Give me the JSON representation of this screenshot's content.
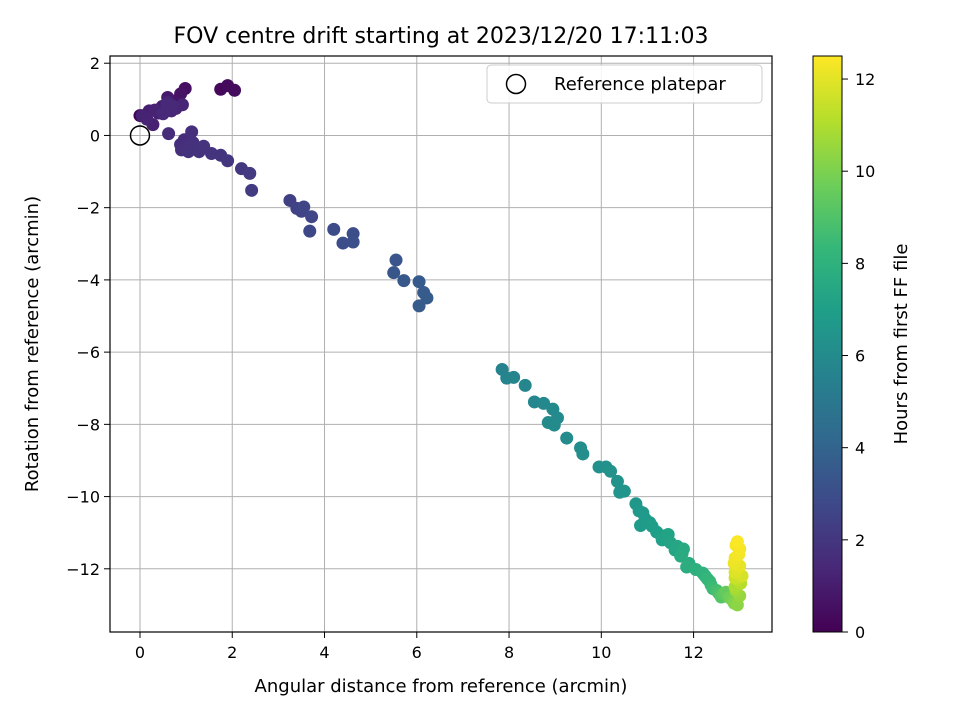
{
  "chart_data": {
    "type": "scatter",
    "title": "FOV centre drift starting at 2023/12/20 17:11:03",
    "xlabel": "Angular distance from reference (arcmin)",
    "ylabel": "Rotation from reference (arcmin)",
    "xlim": [
      -0.65,
      13.7
    ],
    "ylim": [
      -13.75,
      2.2
    ],
    "x_ticks": [
      0,
      2,
      4,
      6,
      8,
      10,
      12
    ],
    "y_ticks": [
      2,
      0,
      -2,
      -4,
      -6,
      -8,
      -10,
      -12
    ],
    "grid": true,
    "legend": {
      "placement": "top-right",
      "entries": [
        "Reference platepar"
      ]
    },
    "reference_point": {
      "x": 0,
      "y": 0
    },
    "colorbar": {
      "label": "Hours from first FF file",
      "min": 0,
      "max": 12.5,
      "ticks": [
        0,
        2,
        4,
        6,
        8,
        10,
        12
      ],
      "colormap": "viridis"
    },
    "series": [
      {
        "x": [
          0.0,
          1.75,
          1.9,
          2.05,
          0.98,
          0.88,
          0.72,
          0.55,
          0.6,
          0.4,
          0.48,
          0.2,
          0.28,
          0.05,
          0.15,
          0.32,
          0.6,
          0.92,
          0.78,
          0.68,
          0.62,
          0.58,
          0.7,
          0.5,
          0.62,
          0.88,
          0.96,
          1.0,
          1.02,
          1.12,
          0.9,
          1.15,
          1.2,
          1.05,
          1.28,
          1.38,
          1.55,
          1.75,
          1.9,
          2.2,
          2.38,
          2.42,
          3.25,
          3.4,
          3.5,
          3.55,
          3.72,
          3.68,
          4.2,
          4.4,
          4.62,
          4.62,
          5.55,
          5.5,
          5.72,
          6.05,
          6.15,
          6.22,
          6.05,
          7.85,
          7.95,
          8.1,
          8.35,
          8.55,
          8.75,
          8.95,
          9.05,
          8.85,
          8.98,
          9.25,
          9.55,
          9.6,
          9.95,
          10.1,
          10.2,
          10.35,
          10.5,
          10.4,
          10.75,
          10.82,
          10.9,
          10.95,
          10.85,
          11.05,
          11.1,
          11.2,
          11.3,
          11.32,
          11.45,
          11.5,
          11.6,
          11.65,
          11.75,
          11.78,
          11.72,
          11.9,
          11.85,
          12.05,
          12.2,
          12.25,
          12.3,
          12.35,
          12.38,
          12.42,
          12.5,
          12.55,
          12.6,
          12.65,
          12.7,
          12.78,
          12.85,
          12.88,
          12.95,
          13.0,
          12.92,
          12.9,
          13.02,
          12.95,
          12.9,
          13.05,
          12.9,
          12.95,
          13.0,
          12.88,
          12.9,
          12.98,
          13.0,
          12.92,
          12.95
        ],
        "y": [
          0.55,
          1.28,
          1.38,
          1.25,
          1.3,
          1.15,
          0.95,
          0.72,
          1.05,
          0.62,
          0.8,
          0.68,
          0.3,
          0.55,
          0.45,
          0.7,
          0.92,
          0.85,
          0.75,
          0.68,
          0.75,
          0.85,
          0.82,
          0.6,
          0.05,
          -0.25,
          -0.12,
          -0.38,
          -0.3,
          0.1,
          -0.4,
          -0.2,
          -0.35,
          -0.45,
          -0.45,
          -0.3,
          -0.5,
          -0.55,
          -0.7,
          -0.92,
          -1.05,
          -1.52,
          -1.8,
          -2.02,
          -2.1,
          -1.98,
          -2.25,
          -2.65,
          -2.6,
          -2.98,
          -2.72,
          -2.95,
          -3.45,
          -3.8,
          -4.02,
          -4.05,
          -4.35,
          -4.5,
          -4.72,
          -6.48,
          -6.72,
          -6.7,
          -6.92,
          -7.38,
          -7.42,
          -7.58,
          -7.82,
          -7.95,
          -8.02,
          -8.38,
          -8.65,
          -8.82,
          -9.18,
          -9.18,
          -9.3,
          -9.58,
          -9.85,
          -9.88,
          -10.2,
          -10.4,
          -10.45,
          -10.62,
          -10.8,
          -10.72,
          -10.82,
          -10.98,
          -11.08,
          -11.2,
          -11.05,
          -11.28,
          -11.48,
          -11.38,
          -11.58,
          -11.45,
          -11.65,
          -11.85,
          -11.95,
          -12.02,
          -12.12,
          -12.2,
          -12.28,
          -12.35,
          -12.45,
          -12.55,
          -12.6,
          -12.68,
          -12.78,
          -12.7,
          -12.65,
          -12.8,
          -12.88,
          -12.95,
          -13.0,
          -12.75,
          -12.6,
          -12.5,
          -12.4,
          -12.3,
          -12.25,
          -12.2,
          -12.1,
          -12.0,
          -11.92,
          -11.85,
          -11.7,
          -11.6,
          -11.45,
          -11.35,
          -11.25
        ],
        "hours": [
          0.15,
          0.25,
          0.32,
          0.4,
          0.55,
          0.65,
          0.72,
          0.8,
          0.85,
          0.95,
          1.0,
          1.05,
          1.1,
          1.15,
          1.2,
          1.22,
          1.25,
          1.3,
          1.32,
          1.35,
          1.38,
          1.4,
          1.42,
          1.45,
          1.55,
          1.6,
          1.62,
          1.65,
          1.68,
          1.7,
          1.72,
          1.75,
          1.78,
          1.8,
          1.82,
          1.85,
          1.88,
          1.9,
          1.95,
          2.05,
          2.15,
          2.2,
          2.4,
          2.5,
          2.55,
          2.6,
          2.7,
          2.75,
          2.9,
          2.95,
          3.0,
          3.05,
          3.3,
          3.35,
          3.45,
          3.55,
          3.6,
          3.65,
          3.62,
          5.6,
          5.65,
          5.7,
          5.75,
          5.8,
          5.85,
          5.9,
          5.95,
          5.98,
          6.0,
          6.05,
          6.1,
          6.15,
          6.25,
          6.3,
          6.35,
          6.4,
          6.45,
          6.5,
          6.6,
          6.65,
          6.7,
          6.75,
          6.8,
          6.85,
          6.9,
          6.95,
          7.05,
          7.1,
          7.2,
          7.25,
          7.35,
          7.4,
          7.5,
          7.55,
          7.6,
          7.7,
          7.8,
          7.9,
          8.0,
          8.1,
          8.2,
          8.3,
          8.4,
          8.5,
          8.7,
          8.9,
          9.1,
          9.3,
          9.5,
          9.7,
          9.9,
          10.1,
          10.3,
          10.5,
          10.7,
          10.9,
          11.1,
          11.3,
          11.5,
          11.7,
          11.85,
          11.95,
          12.05,
          12.15,
          12.25,
          12.3,
          12.35,
          12.4,
          12.45
        ]
      }
    ]
  }
}
